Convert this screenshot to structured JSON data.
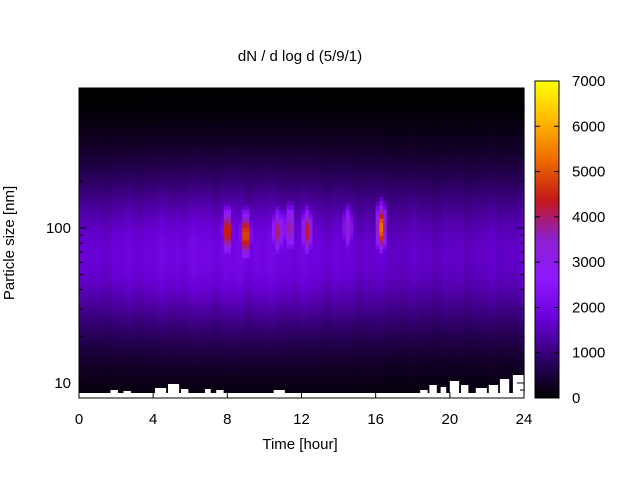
{
  "chart_data": {
    "type": "heatmap",
    "title": "dN / d log d (5/9/1)",
    "xlabel": "Time [hour]",
    "ylabel": "Particle size [nm]",
    "xlim": [
      0,
      24
    ],
    "ylim": [
      8,
      800
    ],
    "y_scale": "log",
    "x_ticks": [
      0,
      4,
      8,
      12,
      16,
      20,
      24
    ],
    "x_tick_labels": [
      "0",
      "4",
      "8",
      "12",
      "16",
      "20",
      "24"
    ],
    "y_ticks": [
      10,
      100
    ],
    "y_tick_labels": [
      "10",
      "100"
    ],
    "colorbar": {
      "range": [
        0,
        7000
      ],
      "ticks": [
        0,
        1000,
        2000,
        3000,
        4000,
        5000,
        6000,
        7000
      ],
      "tick_labels": [
        "0",
        "1000",
        "2000",
        "3000",
        "4000",
        "5000",
        "6000",
        "7000"
      ],
      "palette": [
        "#000000",
        "#30006a",
        "#6a00d8",
        "#9018ff",
        "#8d20d0",
        "#c41818",
        "#ee6a00",
        "#ffb800",
        "#ffff00"
      ]
    },
    "peaks": [
      {
        "time_hour": 8.0,
        "size_nm": 95,
        "value": 4800
      },
      {
        "time_hour": 9.0,
        "size_nm": 90,
        "value": 5200
      },
      {
        "time_hour": 10.7,
        "size_nm": 95,
        "value": 3900
      },
      {
        "time_hour": 11.4,
        "size_nm": 100,
        "value": 3900
      },
      {
        "time_hour": 12.3,
        "size_nm": 95,
        "value": 4300
      },
      {
        "time_hour": 14.5,
        "size_nm": 100,
        "value": 3400
      },
      {
        "time_hour": 16.3,
        "size_nm": 100,
        "value": 5200
      }
    ],
    "background_level": 2000,
    "missing_data": "white gaps near the lower size limit (below ~10 nm), mostly after 18 h",
    "grid": false,
    "legend": "colorbar-right"
  }
}
